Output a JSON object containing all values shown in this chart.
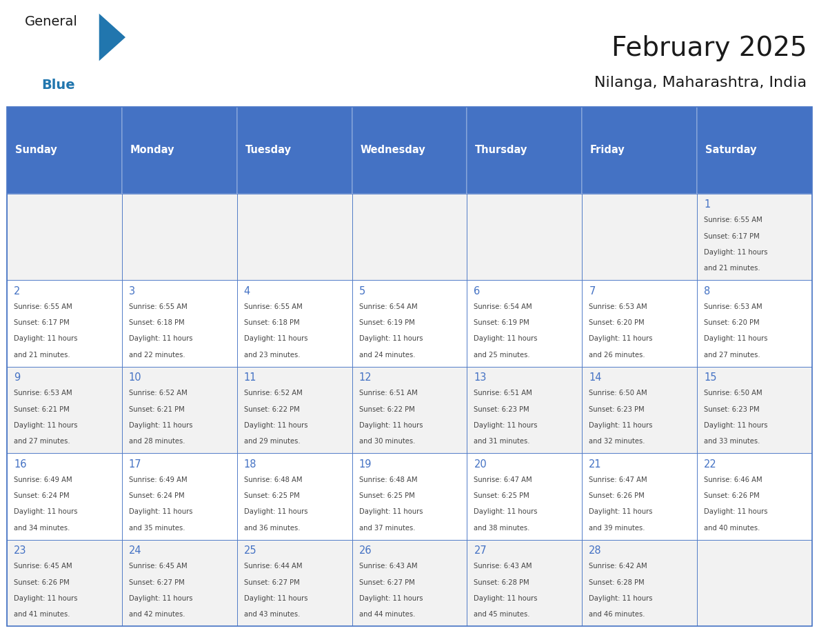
{
  "title": "February 2025",
  "subtitle": "Nilanga, Maharashtra, India",
  "days_of_week": [
    "Sunday",
    "Monday",
    "Tuesday",
    "Wednesday",
    "Thursday",
    "Friday",
    "Saturday"
  ],
  "header_bg": "#4472C4",
  "header_text": "#FFFFFF",
  "cell_bg_odd": "#F2F2F2",
  "cell_bg_even": "#FFFFFF",
  "border_color": "#4472C4",
  "text_color": "#444444",
  "day_number_color": "#4472C4",
  "title_color": "#1a1a1a",
  "subtitle_color": "#1a1a1a",
  "logo_general_color": "#1a1a1a",
  "logo_blue_color": "#2176AE",
  "calendar_data": [
    [
      null,
      null,
      null,
      null,
      null,
      null,
      1
    ],
    [
      2,
      3,
      4,
      5,
      6,
      7,
      8
    ],
    [
      9,
      10,
      11,
      12,
      13,
      14,
      15
    ],
    [
      16,
      17,
      18,
      19,
      20,
      21,
      22
    ],
    [
      23,
      24,
      25,
      26,
      27,
      28,
      null
    ]
  ],
  "sunrise_data": {
    "1": "6:55 AM",
    "2": "6:55 AM",
    "3": "6:55 AM",
    "4": "6:55 AM",
    "5": "6:54 AM",
    "6": "6:54 AM",
    "7": "6:53 AM",
    "8": "6:53 AM",
    "9": "6:53 AM",
    "10": "6:52 AM",
    "11": "6:52 AM",
    "12": "6:51 AM",
    "13": "6:51 AM",
    "14": "6:50 AM",
    "15": "6:50 AM",
    "16": "6:49 AM",
    "17": "6:49 AM",
    "18": "6:48 AM",
    "19": "6:48 AM",
    "20": "6:47 AM",
    "21": "6:47 AM",
    "22": "6:46 AM",
    "23": "6:45 AM",
    "24": "6:45 AM",
    "25": "6:44 AM",
    "26": "6:43 AM",
    "27": "6:43 AM",
    "28": "6:42 AM"
  },
  "sunset_data": {
    "1": "6:17 PM",
    "2": "6:17 PM",
    "3": "6:18 PM",
    "4": "6:18 PM",
    "5": "6:19 PM",
    "6": "6:19 PM",
    "7": "6:20 PM",
    "8": "6:20 PM",
    "9": "6:21 PM",
    "10": "6:21 PM",
    "11": "6:22 PM",
    "12": "6:22 PM",
    "13": "6:23 PM",
    "14": "6:23 PM",
    "15": "6:23 PM",
    "16": "6:24 PM",
    "17": "6:24 PM",
    "18": "6:25 PM",
    "19": "6:25 PM",
    "20": "6:25 PM",
    "21": "6:26 PM",
    "22": "6:26 PM",
    "23": "6:26 PM",
    "24": "6:27 PM",
    "25": "6:27 PM",
    "26": "6:27 PM",
    "27": "6:28 PM",
    "28": "6:28 PM"
  },
  "daylight_data": {
    "1": "and 21 minutes.",
    "2": "and 21 minutes.",
    "3": "and 22 minutes.",
    "4": "and 23 minutes.",
    "5": "and 24 minutes.",
    "6": "and 25 minutes.",
    "7": "and 26 minutes.",
    "8": "and 27 minutes.",
    "9": "and 27 minutes.",
    "10": "and 28 minutes.",
    "11": "and 29 minutes.",
    "12": "and 30 minutes.",
    "13": "and 31 minutes.",
    "14": "and 32 minutes.",
    "15": "and 33 minutes.",
    "16": "and 34 minutes.",
    "17": "and 35 minutes.",
    "18": "and 36 minutes.",
    "19": "and 37 minutes.",
    "20": "and 38 minutes.",
    "21": "and 39 minutes.",
    "22": "and 40 minutes.",
    "23": "and 41 minutes.",
    "24": "and 42 minutes.",
    "25": "and 43 minutes.",
    "26": "and 44 minutes.",
    "27": "and 45 minutes.",
    "28": "and 46 minutes."
  }
}
